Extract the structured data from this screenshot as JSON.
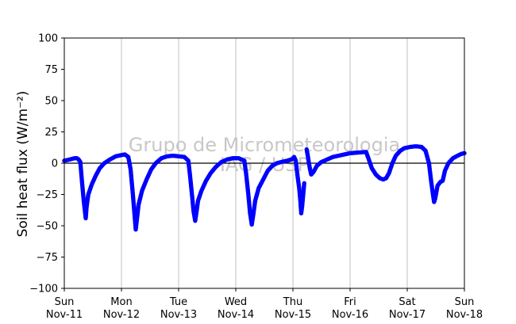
{
  "chart_data": {
    "type": "scatter",
    "title": "",
    "ylabel": "Soil heat flux (W/m⁻²)",
    "xlabel": "",
    "ylim": [
      -100,
      100
    ],
    "yticks": [
      100,
      75,
      50,
      25,
      0,
      -25,
      -50,
      -75,
      -100
    ],
    "ytick_labels": [
      "100",
      "75",
      "50",
      "25",
      "0",
      "−25",
      "−50",
      "−75",
      "−100"
    ],
    "xlim": [
      0,
      7
    ],
    "xticks": [
      {
        "day": "Sun",
        "date": "Nov-11"
      },
      {
        "day": "Mon",
        "date": "Nov-12"
      },
      {
        "day": "Tue",
        "date": "Nov-13"
      },
      {
        "day": "Wed",
        "date": "Nov-14"
      },
      {
        "day": "Thu",
        "date": "Nov-15"
      },
      {
        "day": "Fri",
        "date": "Nov-16"
      },
      {
        "day": "Sat",
        "date": "Nov-17"
      },
      {
        "day": "Sun",
        "date": "Nov-18"
      }
    ],
    "grid": "vertical",
    "zero_line": true,
    "watermark": [
      "Grupo de Micrometeorologia",
      "IAG / USP"
    ],
    "series": [
      {
        "color": "#0000ff",
        "points": [
          [
            0.0,
            2
          ],
          [
            0.1,
            3
          ],
          [
            0.18,
            4
          ],
          [
            0.22,
            4
          ],
          [
            0.25,
            3
          ],
          [
            0.28,
            1
          ],
          [
            0.31,
            -15
          ],
          [
            0.34,
            -30
          ],
          [
            0.36,
            -38
          ],
          [
            0.375,
            -44
          ],
          [
            0.39,
            -35
          ],
          [
            0.42,
            -25
          ],
          [
            0.48,
            -17
          ],
          [
            0.55,
            -10
          ],
          [
            0.62,
            -4
          ],
          [
            0.7,
            0
          ],
          [
            0.8,
            3
          ],
          [
            0.9,
            5.5
          ],
          [
            1.0,
            6.5
          ],
          [
            1.06,
            7
          ],
          [
            1.12,
            5
          ],
          [
            1.16,
            -5
          ],
          [
            1.2,
            -25
          ],
          [
            1.23,
            -42
          ],
          [
            1.25,
            -53
          ],
          [
            1.27,
            -45
          ],
          [
            1.3,
            -33
          ],
          [
            1.36,
            -22
          ],
          [
            1.44,
            -13
          ],
          [
            1.52,
            -5
          ],
          [
            1.6,
            0
          ],
          [
            1.7,
            4
          ],
          [
            1.8,
            5.5
          ],
          [
            1.9,
            6
          ],
          [
            2.0,
            5.5
          ],
          [
            2.1,
            5
          ],
          [
            2.17,
            2
          ],
          [
            2.2,
            -10
          ],
          [
            2.24,
            -28
          ],
          [
            2.26,
            -38
          ],
          [
            2.29,
            -46
          ],
          [
            2.31,
            -40
          ],
          [
            2.34,
            -30
          ],
          [
            2.4,
            -22
          ],
          [
            2.48,
            -14
          ],
          [
            2.56,
            -8
          ],
          [
            2.65,
            -3
          ],
          [
            2.75,
            1
          ],
          [
            2.85,
            3
          ],
          [
            2.95,
            4
          ],
          [
            3.05,
            4
          ],
          [
            3.15,
            2
          ],
          [
            3.18,
            -8
          ],
          [
            3.22,
            -25
          ],
          [
            3.25,
            -40
          ],
          [
            3.28,
            -49
          ],
          [
            3.31,
            -40
          ],
          [
            3.34,
            -30
          ],
          [
            3.4,
            -20
          ],
          [
            3.48,
            -13
          ],
          [
            3.56,
            -6
          ],
          [
            3.64,
            -2
          ],
          [
            3.72,
            0
          ],
          [
            3.8,
            1
          ],
          [
            3.9,
            2
          ],
          [
            3.98,
            3
          ],
          [
            4.02,
            5
          ],
          [
            4.05,
            2
          ],
          [
            4.08,
            -10
          ],
          [
            4.11,
            -20
          ],
          [
            4.13,
            -30
          ],
          [
            4.145,
            -40
          ],
          [
            4.16,
            -35
          ],
          [
            4.18,
            -25
          ],
          [
            4.2,
            -15
          ],
          [
            4.24,
            11
          ],
          [
            4.26,
            6
          ],
          [
            4.28,
            0
          ],
          [
            4.3,
            -5
          ],
          [
            4.32,
            -9
          ],
          [
            4.36,
            -7
          ],
          [
            4.42,
            -2
          ],
          [
            4.5,
            1
          ],
          [
            4.6,
            3
          ],
          [
            4.7,
            5
          ],
          [
            4.8,
            6
          ],
          [
            4.9,
            7
          ],
          [
            5.0,
            8
          ],
          [
            5.28,
            9
          ],
          [
            5.32,
            4
          ],
          [
            5.38,
            -4
          ],
          [
            5.45,
            -9
          ],
          [
            5.52,
            -12
          ],
          [
            5.58,
            -13
          ],
          [
            5.63,
            -12
          ],
          [
            5.68,
            -8
          ],
          [
            5.74,
            0
          ],
          [
            5.8,
            6
          ],
          [
            5.88,
            10
          ],
          [
            5.95,
            12
          ],
          [
            6.05,
            13
          ],
          [
            6.15,
            13.5
          ],
          [
            6.25,
            13
          ],
          [
            6.32,
            10
          ],
          [
            6.38,
            0
          ],
          [
            6.42,
            -15
          ],
          [
            6.45,
            -25
          ],
          [
            6.47,
            -31
          ],
          [
            6.49,
            -28
          ],
          [
            6.53,
            -18
          ],
          [
            6.58,
            -15
          ],
          [
            6.62,
            -14
          ],
          [
            6.66,
            -6
          ],
          [
            6.72,
            0
          ],
          [
            6.8,
            4
          ],
          [
            6.88,
            6
          ],
          [
            6.95,
            7.5
          ],
          [
            7.0,
            8
          ]
        ]
      }
    ]
  }
}
